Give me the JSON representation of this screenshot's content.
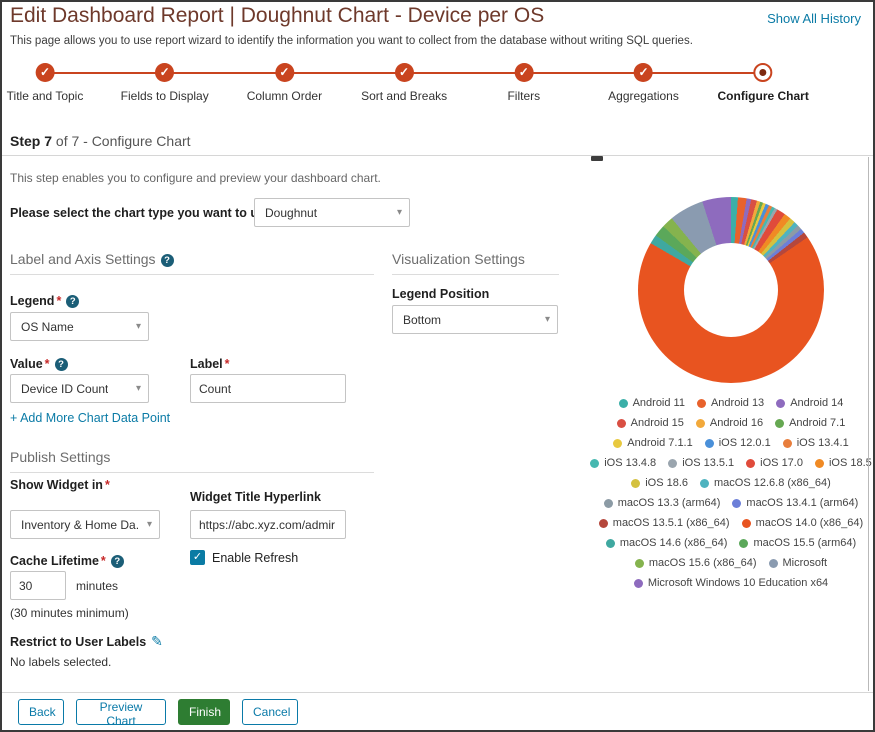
{
  "page": {
    "title": "Edit Dashboard Report | Doughnut Chart - Device per OS",
    "history_link": "Show All History",
    "subtitle": "This page allows you to use report wizard to identify the information you want to collect from the database without writing SQL queries."
  },
  "stepper": {
    "steps": [
      {
        "label": "Title and Topic",
        "state": "complete"
      },
      {
        "label": "Fields to Display",
        "state": "complete"
      },
      {
        "label": "Column Order",
        "state": "complete"
      },
      {
        "label": "Sort and Breaks",
        "state": "complete"
      },
      {
        "label": "Filters",
        "state": "complete"
      },
      {
        "label": "Aggregations",
        "state": "complete"
      },
      {
        "label": "Configure Chart",
        "state": "current"
      }
    ]
  },
  "step_header": {
    "strong": "Step 7",
    "rest": " of 7 - Configure Chart"
  },
  "step_description": "This step enables you to configure and preview your dashboard chart.",
  "chart_type": {
    "label": "Please select the chart type you want to use",
    "value": "Doughnut"
  },
  "sections": {
    "label_axis_heading": "Label and Axis Settings",
    "visualization_heading": "Visualization Settings",
    "publish_heading": "Publish Settings"
  },
  "label_axis": {
    "legend_label": "Legend",
    "legend_value": "OS Name",
    "value_label": "Value",
    "value_value": "Device ID Count",
    "label_label": "Label",
    "label_value": "Count",
    "add_link": "+ Add More Chart Data Point"
  },
  "visualization": {
    "legend_position_label": "Legend Position",
    "legend_position_value": "Bottom"
  },
  "publish": {
    "show_widget_label": "Show Widget in",
    "show_widget_value": "Inventory & Home Da...",
    "hyperlink_label": "Widget Title Hyperlink",
    "hyperlink_value": "https://abc.xyz.com/admir",
    "cache_label": "Cache Lifetime",
    "cache_value": "30",
    "cache_unit": "minutes",
    "cache_note": "(30 minutes minimum)",
    "enable_refresh_label": "Enable Refresh",
    "restrict_label": "Restrict to User Labels",
    "restrict_value": "No labels selected."
  },
  "footer": {
    "back": "Back",
    "preview": "Preview Chart",
    "finish": "Finish",
    "cancel": "Cancel"
  },
  "icons": {
    "caret": "▾",
    "check": "✓",
    "help": "?",
    "edit": "✎"
  },
  "chart_data": {
    "type": "pie",
    "style": "doughnut",
    "title": "",
    "series_name": "Device ID Count",
    "legend_position": "bottom",
    "values_note": "percentages estimated from slice angles; no numeric labels visible in screenshot",
    "slices": [
      {
        "label": "Android 11",
        "value": 1.2,
        "color": "#3BAFA8"
      },
      {
        "label": "Android 13",
        "value": 1.5,
        "color": "#E8622C"
      },
      {
        "label": "Android 14",
        "value": 0.8,
        "color": "#8E6BBE"
      },
      {
        "label": "Android 15",
        "value": 1.0,
        "color": "#D94F43"
      },
      {
        "label": "Android 16",
        "value": 0.6,
        "color": "#F2A93B"
      },
      {
        "label": "Android 7.1",
        "value": 0.5,
        "color": "#66A852"
      },
      {
        "label": "Android 7.1.1",
        "value": 0.5,
        "color": "#E8C93F"
      },
      {
        "label": "iOS 12.0.1",
        "value": 0.6,
        "color": "#4A90D9"
      },
      {
        "label": "iOS 13.4.1",
        "value": 0.6,
        "color": "#E87E3C"
      },
      {
        "label": "iOS 13.4.8",
        "value": 0.5,
        "color": "#46B8B0"
      },
      {
        "label": "iOS 13.5.1",
        "value": 0.5,
        "color": "#9AA5AE"
      },
      {
        "label": "iOS 17.0",
        "value": 1.5,
        "color": "#E04B3B"
      },
      {
        "label": "iOS 18.5",
        "value": 1.2,
        "color": "#F08A24"
      },
      {
        "label": "iOS 18.6",
        "value": 1.0,
        "color": "#D4C13F"
      },
      {
        "label": "macOS 12.6.8 (x86_64)",
        "value": 0.8,
        "color": "#4FB3BF"
      },
      {
        "label": "macOS 13.3 (arm64)",
        "value": 0.8,
        "color": "#8C9BA5"
      },
      {
        "label": "macOS 13.4.1 (arm64)",
        "value": 0.8,
        "color": "#6C7FD8"
      },
      {
        "label": "macOS 13.5.1 (x86_64)",
        "value": 1.0,
        "color": "#B5473C"
      },
      {
        "label": "macOS 14.0 (x86_64)",
        "value": 68.0,
        "color": "#E85420"
      },
      {
        "label": "macOS 14.6 (x86_64)",
        "value": 1.6,
        "color": "#3FA8A0"
      },
      {
        "label": "macOS 15.5 (arm64)",
        "value": 2.0,
        "color": "#5BA85A"
      },
      {
        "label": "macOS 15.6 (x86_64)",
        "value": 2.0,
        "color": "#85B34E"
      },
      {
        "label": "Microsoft",
        "value": 6.0,
        "color": "#8A9BB0"
      },
      {
        "label": "Microsoft Windows 10 Education x64",
        "value": 5.0,
        "color": "#8E6BBE"
      }
    ]
  },
  "colors": {
    "accent_orange": "#C9441F",
    "title_maroon": "#6E392B",
    "link_teal": "#0B7BA6",
    "finish_green": "#2E7D32",
    "asterisk_red": "#C62828",
    "help_icon_bg": "#1B5E77",
    "donut_main": "#E85420"
  }
}
